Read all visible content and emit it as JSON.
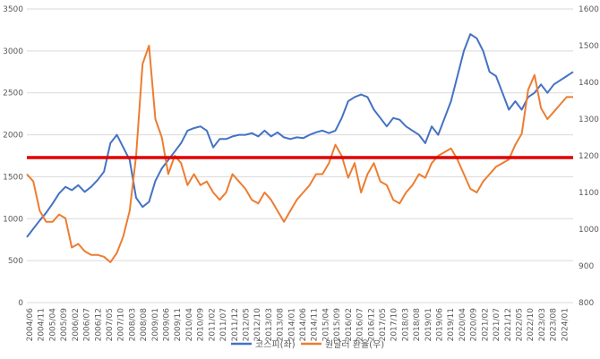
{
  "chart_data": {
    "type": "line",
    "title": "",
    "y_left": {
      "min": 0,
      "max": 3500,
      "step": 500,
      "ticks": [
        "0",
        "500",
        "1000",
        "1500",
        "2000",
        "2500",
        "3000",
        "3500"
      ]
    },
    "y_right": {
      "min": 800,
      "max": 1600,
      "step": 100,
      "ticks": [
        "800",
        "900",
        "1000",
        "1100",
        "1200",
        "1300",
        "1400",
        "1500",
        "1600"
      ]
    },
    "x_labels": [
      "2004/06",
      "2004/11",
      "2005/04",
      "2005/09",
      "2006/02",
      "2006/07",
      "2006/12",
      "2007/05",
      "2007/10",
      "2008/03",
      "2008/08",
      "2009/01",
      "2009/06",
      "2009/11",
      "2010/04",
      "2010/09",
      "2011/02",
      "2011/07",
      "2011/12",
      "2012/05",
      "2012/10",
      "2013/03",
      "2013/08",
      "2014/01",
      "2014/06",
      "2014/11",
      "2015/04",
      "2015/09",
      "2016/02",
      "2016/07",
      "2016/12",
      "2017/05",
      "2017/10",
      "2018/03",
      "2018/08",
      "2019/01",
      "2019/06",
      "2019/11",
      "2020/04",
      "2020/09",
      "2021/02",
      "2021/07",
      "2021/12",
      "2022/05",
      "2022/10",
      "2023/03",
      "2023/08",
      "2024/01"
    ],
    "reference_line": {
      "axis": "right",
      "value": 1195,
      "color": "#E00000"
    },
    "series": [
      {
        "name": "코스피(좌)",
        "axis": "left",
        "color": "#4472C4",
        "values": [
          780,
          880,
          980,
          1070,
          1180,
          1300,
          1380,
          1340,
          1400,
          1320,
          1380,
          1460,
          1560,
          1900,
          2000,
          1850,
          1700,
          1250,
          1140,
          1200,
          1450,
          1600,
          1700,
          1800,
          1900,
          2050,
          2080,
          2100,
          2050,
          1850,
          1950,
          1950,
          1980,
          2000,
          2000,
          2020,
          1980,
          2050,
          1980,
          2030,
          1970,
          1950,
          1970,
          1960,
          2000,
          2030,
          2050,
          2020,
          2050,
          2200,
          2400,
          2450,
          2480,
          2450,
          2300,
          2200,
          2100,
          2200,
          2180,
          2100,
          2050,
          2000,
          1900,
          2100,
          2000,
          2200,
          2400,
          2700,
          3000,
          3200,
          3150,
          3000,
          2750,
          2700,
          2500,
          2300,
          2400,
          2300,
          2450,
          2500,
          2600,
          2500,
          2600,
          2650,
          2700,
          2750
        ]
      },
      {
        "name": "원달러 환율(우)",
        "axis": "right",
        "color": "#ED7D31",
        "values": [
          1150,
          1130,
          1050,
          1020,
          1020,
          1040,
          1030,
          950,
          960,
          940,
          930,
          930,
          925,
          910,
          935,
          980,
          1050,
          1200,
          1450,
          1500,
          1300,
          1250,
          1150,
          1200,
          1180,
          1120,
          1150,
          1120,
          1130,
          1100,
          1080,
          1100,
          1150,
          1130,
          1110,
          1080,
          1070,
          1100,
          1080,
          1050,
          1020,
          1050,
          1080,
          1100,
          1120,
          1150,
          1150,
          1180,
          1230,
          1200,
          1140,
          1180,
          1100,
          1150,
          1180,
          1130,
          1120,
          1080,
          1070,
          1100,
          1120,
          1150,
          1140,
          1180,
          1200,
          1210,
          1220,
          1190,
          1150,
          1110,
          1100,
          1130,
          1150,
          1170,
          1180,
          1190,
          1230,
          1260,
          1380,
          1420,
          1330,
          1300,
          1320,
          1340,
          1360,
          1360
        ]
      }
    ]
  }
}
